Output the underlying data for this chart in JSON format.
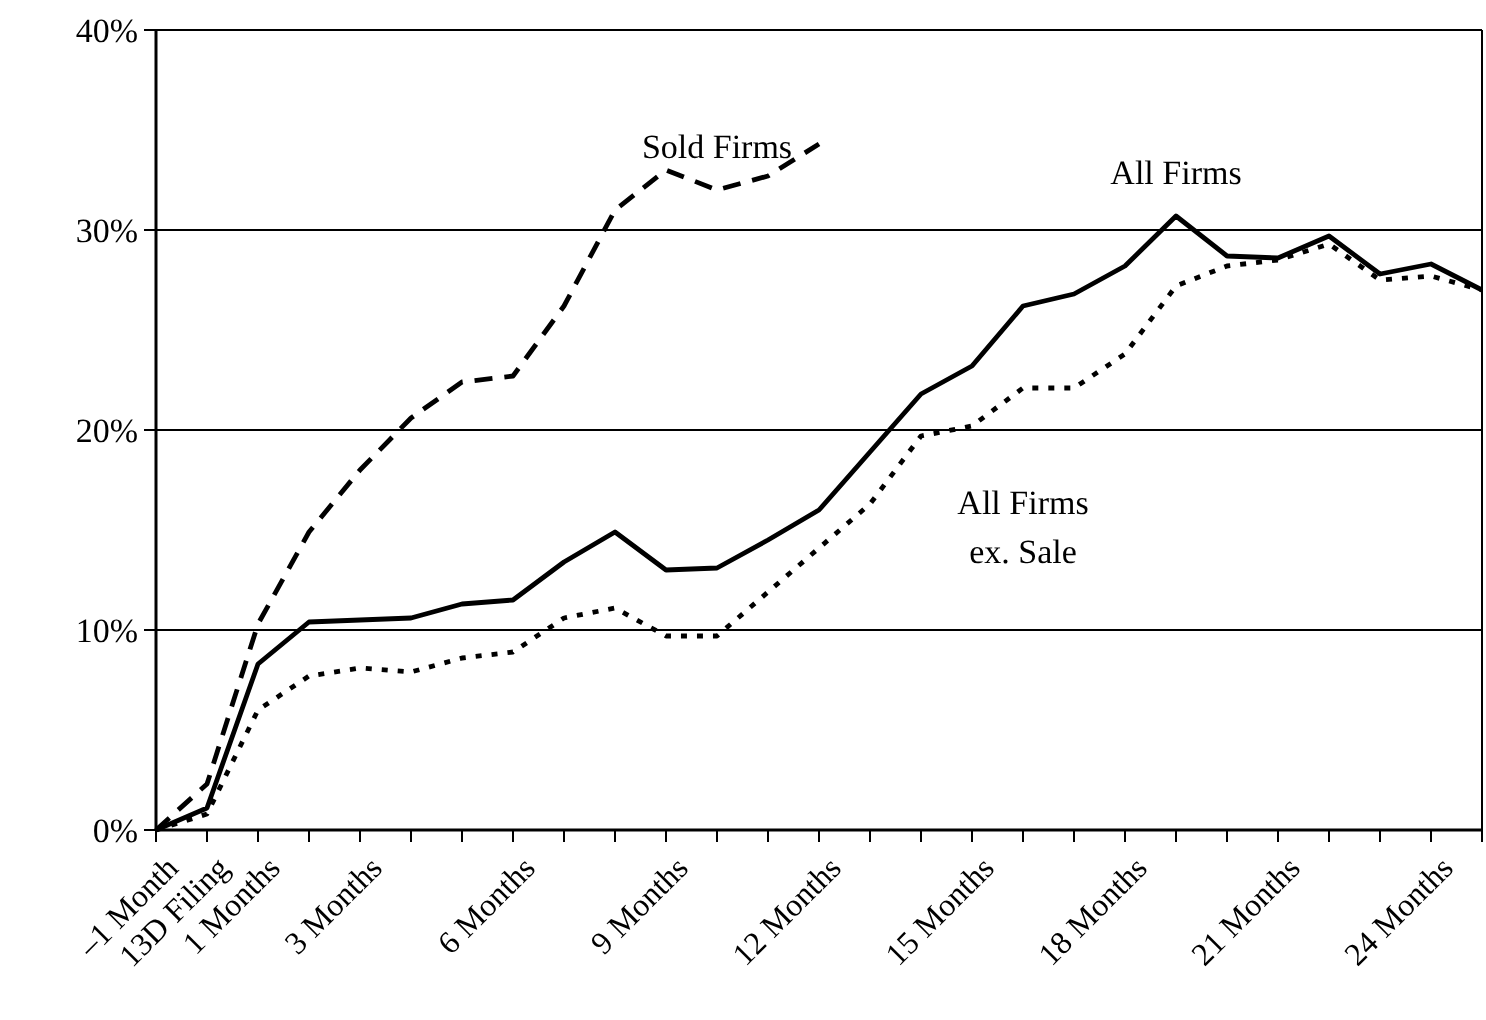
{
  "chart_data": {
    "type": "line",
    "categories": [
      "–1 Month",
      "13D Filing",
      "1 Months",
      null,
      "3 Months",
      null,
      null,
      "6 Months",
      null,
      null,
      "9 Months",
      null,
      null,
      "12 Months",
      null,
      null,
      "15 Months",
      null,
      null,
      "18 Months",
      null,
      null,
      "21 Months",
      null,
      null,
      "24 Months",
      null
    ],
    "ylim": [
      0,
      40
    ],
    "yticks": [
      {
        "value": 0,
        "label": "0%"
      },
      {
        "value": 10,
        "label": "10%"
      },
      {
        "value": 20,
        "label": "20%"
      },
      {
        "value": 30,
        "label": "30%"
      },
      {
        "value": 40,
        "label": "40%"
      }
    ],
    "grid": "y",
    "marker": "none",
    "series": [
      {
        "name": "Sold Firms",
        "color": "#000000",
        "line_style": "dashed",
        "values": [
          0,
          2.3,
          10.3,
          14.9,
          18,
          20.6,
          22.4,
          22.7,
          26.2,
          31,
          33,
          32,
          32.7,
          34.3,
          null,
          null,
          null,
          null,
          null,
          null,
          null,
          null,
          null,
          null,
          null,
          null,
          null
        ]
      },
      {
        "name": "All Firms",
        "color": "#000000",
        "line_style": "solid",
        "values": [
          0,
          1.1,
          8.3,
          10.4,
          10.5,
          10.6,
          11.3,
          11.5,
          13.4,
          14.9,
          13,
          13.1,
          14.5,
          16,
          18.9,
          21.8,
          23.2,
          26.2,
          26.8,
          28.2,
          30.7,
          28.7,
          28.6,
          29.7,
          27.8,
          28.3,
          27
        ]
      },
      {
        "name": "All Firms\nex. Sale",
        "color": "#000000",
        "line_style": "dotted",
        "values": [
          0,
          0.8,
          6,
          7.7,
          8.1,
          7.9,
          8.6,
          8.9,
          10.6,
          11.1,
          9.7,
          9.7,
          11.9,
          14.1,
          16.3,
          19.7,
          20.2,
          22.1,
          22.1,
          23.8,
          27.2,
          28.2,
          28.5,
          29.3,
          27.5,
          27.7,
          27
        ]
      }
    ]
  }
}
